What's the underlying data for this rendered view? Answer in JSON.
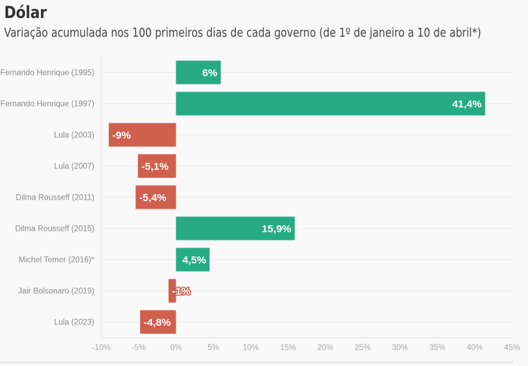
{
  "chart_data": {
    "type": "bar",
    "orientation": "horizontal",
    "title": "Dólar",
    "subtitle": "Variação acumulada nos 100 primeiros dias de cada governo (de 1º de janeiro a 10 de abril*)",
    "xlabel": "",
    "ylabel": "",
    "xlim": [
      -10,
      45
    ],
    "grid": true,
    "legend": "none",
    "categories": [
      "Fernando Henrique (1995)",
      "Fernando Henrique (1997)",
      "Lula (2003)",
      "Lula (2007)",
      "Dilma Rousseff (2011)",
      "Dilma Rousseff (2015)",
      "Michel Temer (2016)*",
      "Jair Bolsonaro (2019)",
      "Lula (2023)"
    ],
    "values": [
      6,
      41.4,
      -9,
      -5.1,
      -5.4,
      15.9,
      4.5,
      -1,
      -4.8
    ],
    "value_labels": [
      "6%",
      "41,4%",
      "-9%",
      "-5,1%",
      "-5,4%",
      "15,9%",
      "4,5%",
      "-1%",
      "-4,8%"
    ],
    "x_ticks": [
      -10,
      -5,
      0,
      5,
      10,
      15,
      20,
      25,
      30,
      35,
      40,
      45
    ],
    "x_tick_labels": [
      "-10%",
      "-5%",
      "0%",
      "5%",
      "10%",
      "15%",
      "20%",
      "25%",
      "30%",
      "35%",
      "40%",
      "45%"
    ],
    "colors": {
      "positive": "#27ab83",
      "negative": "#d0604e"
    }
  }
}
